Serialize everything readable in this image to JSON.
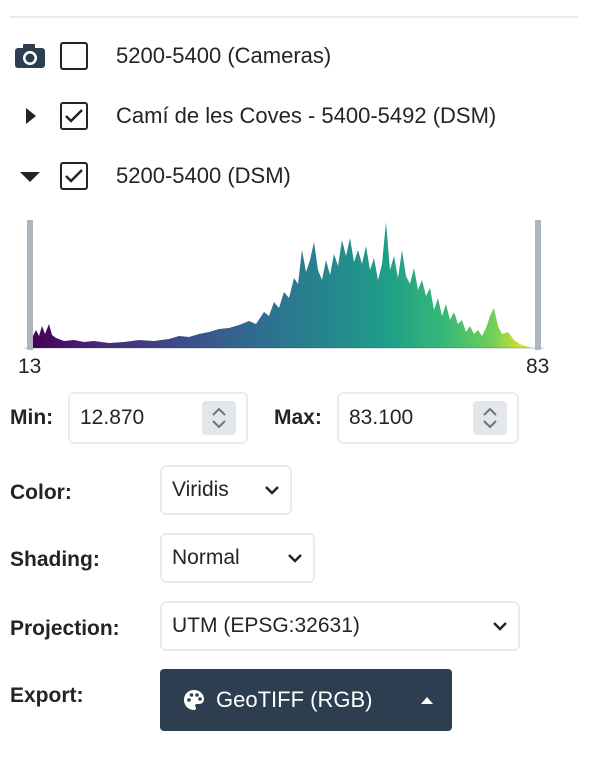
{
  "layers": [
    {
      "label": "5200-5400 (Cameras)",
      "icon": "camera-icon",
      "checked": false
    },
    {
      "label": "Camí de les Coves - 5400-5492 (DSM)",
      "icon": "caret-right-icon",
      "checked": true
    },
    {
      "label": "5200-5400 (DSM)",
      "icon": "caret-down-icon",
      "checked": true
    }
  ],
  "histogram": {
    "min_label": "13",
    "max_label": "83",
    "colormap": "viridis"
  },
  "range": {
    "min_label": "Min:",
    "min_value": "12.870",
    "max_label": "Max:",
    "max_value": "83.100"
  },
  "color": {
    "label": "Color:",
    "value": "Viridis"
  },
  "shading": {
    "label": "Shading:",
    "value": "Normal"
  },
  "projection": {
    "label": "Projection:",
    "value": "UTM (EPSG:32631)"
  },
  "export": {
    "label": "Export:",
    "button_label": "GeoTIFF (RGB)",
    "button_icon": "palette-icon"
  },
  "colors": {
    "dark": "#212529",
    "button_bg": "#2c3e50",
    "border": "#e9ecef",
    "handle": "#adb5bd"
  }
}
